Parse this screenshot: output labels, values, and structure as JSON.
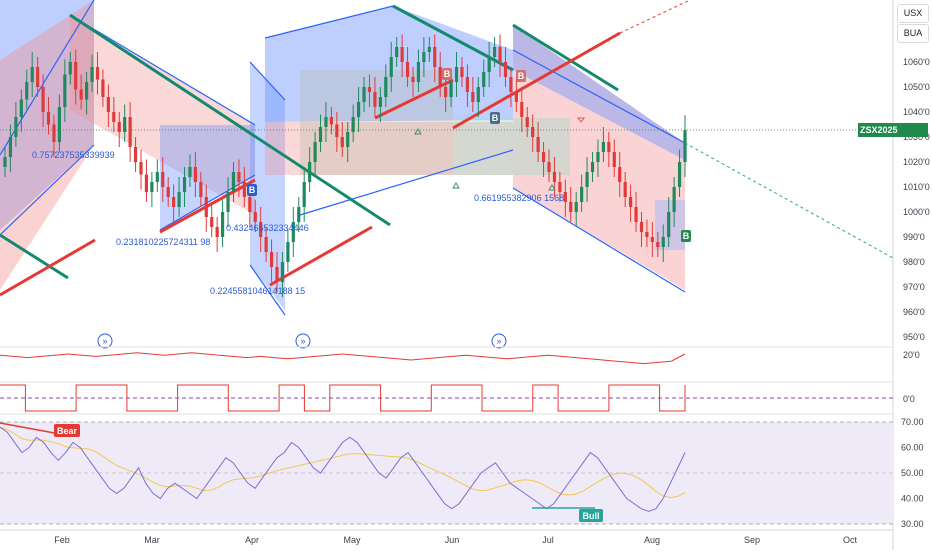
{
  "colors": {
    "up": "#26a69a",
    "down": "#ef5350",
    "upBody": "#1e8a5e",
    "downBody": "#e03a3a",
    "channelBlue": "#2962ff",
    "fillBlue": "#6f95ff",
    "fillRed": "#f28e8e",
    "trendGreen": "#138a6e",
    "trendRed": "#e53935",
    "rsiLine": "#7e6fd0",
    "rsiMa": "#f2c94c",
    "annBlue": "#2a5bd7",
    "priceTag": "#1f8a4c",
    "grid": "#e6e6e6"
  },
  "header": {
    "currency": "USX",
    "unit": "BUA"
  },
  "price_tag": {
    "symbol": "ZSX2025",
    "value": "1032'6"
  },
  "chart_data": [
    {
      "type": "candlestick",
      "title": "",
      "x_ticks": [
        "Feb",
        "Mar",
        "Apr",
        "May",
        "Jun",
        "Jul",
        "Aug",
        "Sep",
        "Oct"
      ],
      "y_ticks": [
        "1060'0",
        "1050'0",
        "1040'0",
        "1030'0",
        "1020'0",
        "1010'0",
        "1000'0",
        "990'0",
        "980'0",
        "970'0",
        "960'0",
        "950'0"
      ],
      "ylim": [
        945,
        1075
      ],
      "last_price": 1032.75,
      "candles_close": [
        1022,
        1030,
        1038,
        1045,
        1052,
        1058,
        1050,
        1040,
        1035,
        1028,
        1042,
        1055,
        1060,
        1049,
        1045,
        1052,
        1058,
        1053,
        1046,
        1040,
        1036,
        1032,
        1038,
        1026,
        1020,
        1015,
        1008,
        1012,
        1016,
        1010,
        1006,
        1002,
        1008,
        1014,
        1018,
        1012,
        1006,
        998,
        994,
        990,
        1000,
        1008,
        1016,
        1012,
        1006,
        1000,
        996,
        990,
        984,
        978,
        972,
        980,
        988,
        996,
        1002,
        1012,
        1020,
        1028,
        1034,
        1038,
        1035,
        1030,
        1026,
        1032,
        1038,
        1044,
        1050,
        1048,
        1042,
        1046,
        1054,
        1062,
        1066,
        1060,
        1054,
        1052,
        1060,
        1064,
        1066,
        1058,
        1050,
        1046,
        1052,
        1058,
        1054,
        1048,
        1044,
        1050,
        1056,
        1062,
        1066,
        1060,
        1054,
        1048,
        1044,
        1038,
        1034,
        1030,
        1024,
        1020,
        1016,
        1012,
        1008,
        1004,
        1000,
        1004,
        1010,
        1016,
        1020,
        1024,
        1028,
        1024,
        1018,
        1012,
        1006,
        1002,
        996,
        992,
        990,
        988,
        986,
        990,
        1000,
        1010,
        1020,
        1032.75
      ],
      "annotations": [
        "0.757237535339939",
        "0.231810225724311 98",
        "0.432466532334446",
        "0.224558104614188 15",
        "0.661955382906 1568"
      ],
      "signals": [
        "Bear",
        "Bull"
      ]
    },
    {
      "type": "line",
      "title": "",
      "y_ticks": [
        "20'0"
      ],
      "values": [
        19,
        18,
        17,
        18,
        19,
        20,
        19,
        18,
        19,
        20,
        21,
        20,
        19,
        20,
        21,
        20,
        19,
        18,
        17,
        18,
        17,
        16,
        17,
        18,
        19,
        20,
        19,
        18,
        17,
        16,
        15,
        16,
        17,
        18,
        19,
        18,
        17,
        16,
        17,
        18,
        19,
        18,
        17,
        16,
        15,
        14,
        13,
        12,
        13,
        14,
        20
      ]
    },
    {
      "type": "line",
      "title": "",
      "y_ticks": [
        "0'0"
      ],
      "values": [
        1,
        0,
        0,
        1,
        1,
        0,
        0,
        1,
        1,
        0,
        0,
        1,
        0,
        1,
        1,
        0,
        0,
        1,
        1,
        0,
        0,
        1,
        0,
        0,
        1,
        1,
        0,
        1
      ]
    },
    {
      "type": "line",
      "title": "",
      "y_ticks": [
        "70.00",
        "60.00",
        "50.00",
        "40.00",
        "30.00"
      ],
      "ylim": [
        28,
        72
      ],
      "values": [
        68,
        66,
        62,
        58,
        60,
        64,
        62,
        58,
        55,
        58,
        62,
        60,
        56,
        52,
        48,
        44,
        42,
        44,
        48,
        52,
        46,
        42,
        40,
        44,
        46,
        44,
        42,
        40,
        44,
        48,
        52,
        56,
        54,
        50,
        46,
        44,
        48,
        52,
        56,
        58,
        62,
        60,
        56,
        52,
        50,
        54,
        58,
        62,
        64,
        62,
        58,
        54,
        50,
        48,
        52,
        56,
        58,
        54,
        50,
        46,
        42,
        38,
        36,
        38,
        42,
        46,
        50,
        52,
        54,
        50,
        46,
        44,
        42,
        40,
        38,
        36,
        38,
        42,
        46,
        50,
        54,
        58,
        56,
        52,
        48,
        44,
        40,
        38,
        36,
        35,
        36,
        40,
        46,
        52,
        58
      ]
    }
  ]
}
